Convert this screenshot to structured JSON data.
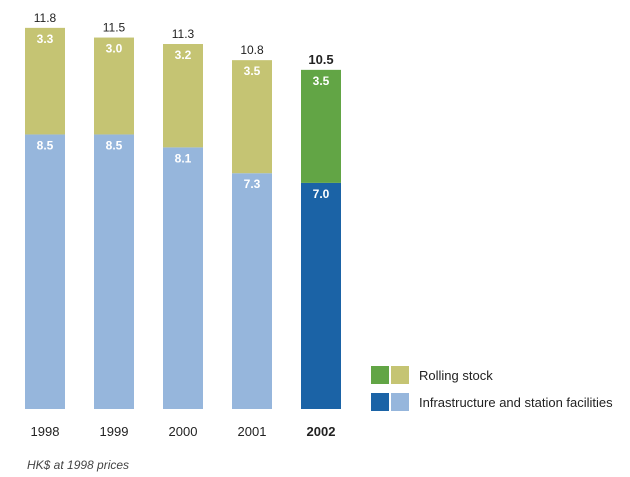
{
  "chart_data": {
    "type": "bar",
    "stacked": true,
    "categories": [
      "1998",
      "1999",
      "2000",
      "2001",
      "2002"
    ],
    "highlight_category": "2002",
    "series": [
      {
        "name": "Infrastructure and station facilities",
        "values": [
          8.5,
          8.5,
          8.1,
          7.3,
          7.0
        ]
      },
      {
        "name": "Rolling stock",
        "values": [
          3.3,
          3.0,
          3.2,
          3.5,
          3.5
        ]
      }
    ],
    "totals": [
      "11.8",
      "11.5",
      "11.3",
      "10.8",
      "10.5"
    ],
    "segment_labels": [
      [
        "8.5",
        "8.5",
        "8.1",
        "7.3",
        "7.0"
      ],
      [
        "3.3",
        "3.0",
        "3.2",
        "3.5",
        "3.5"
      ]
    ],
    "ylim": [
      0,
      11.8
    ],
    "grid": false,
    "legend_position": "bottom-right",
    "footnote": "HK$ at 1998 prices"
  },
  "colors": {
    "infrastructure": "#96b6dc",
    "infrastructure_highlight": "#1b63a6",
    "rolling_stock": "#c5c473",
    "rolling_stock_highlight": "#62a545",
    "text": "#222222"
  }
}
